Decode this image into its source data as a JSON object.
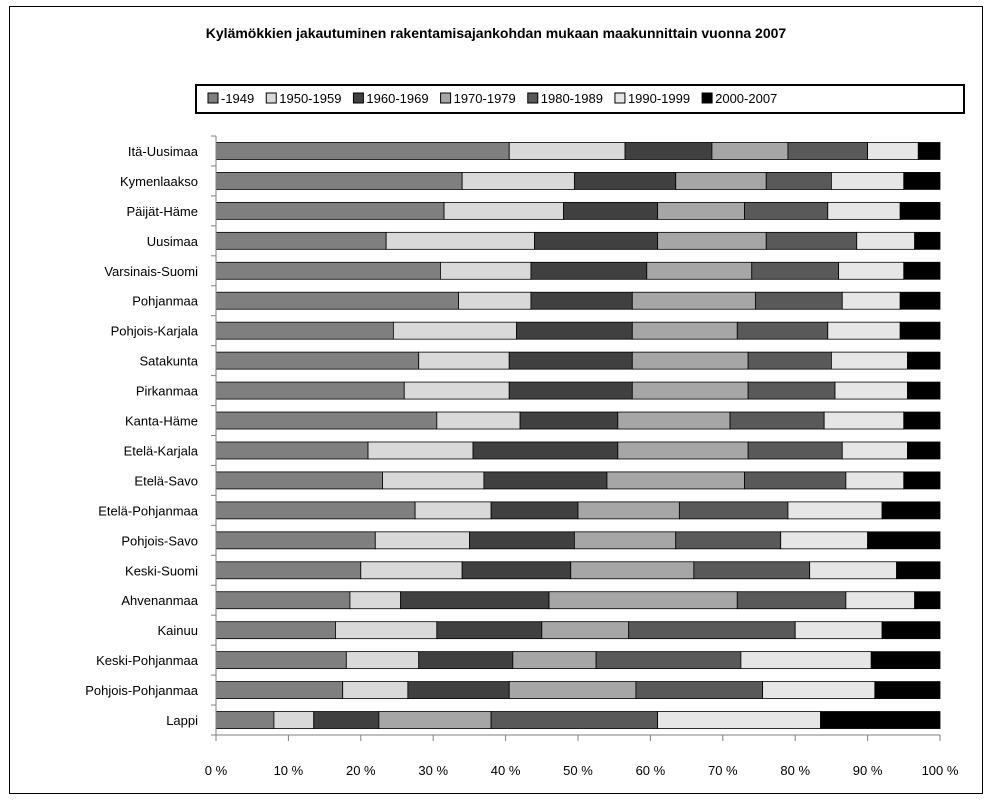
{
  "chart_data": {
    "type": "bar",
    "orientation": "horizontal",
    "stacked": "percent",
    "title": "Kylämökkien jakautuminen rakentamisajankohdan  mukaan maakunnittain vuonna 2007",
    "categories": [
      "Itä-Uusimaa",
      "Kymenlaakso",
      "Päijät-Häme",
      "Uusimaa",
      "Varsinais-Suomi",
      "Pohjanmaa",
      "Pohjois-Karjala",
      "Satakunta",
      "Pirkanmaa",
      "Kanta-Häme",
      "Etelä-Karjala",
      "Etelä-Savo",
      "Etelä-Pohjanmaa",
      "Pohjois-Savo",
      "Keski-Suomi",
      "Ahvenanmaa",
      "Kainuu",
      "Keski-Pohjanmaa",
      "Pohjois-Pohjanmaa",
      "Lappi"
    ],
    "series": [
      {
        "name": "-1949",
        "color": "#7f7f7f",
        "values": [
          40.5,
          34.0,
          31.5,
          23.5,
          31.0,
          33.5,
          24.5,
          28.0,
          26.0,
          30.5,
          21.0,
          23.0,
          27.5,
          22.0,
          20.0,
          18.5,
          16.5,
          18.0,
          17.5,
          8.0
        ]
      },
      {
        "name": "1950-1959",
        "color": "#d9d9d9",
        "values": [
          16.0,
          15.5,
          16.5,
          20.5,
          12.5,
          10.0,
          17.0,
          12.5,
          14.5,
          11.5,
          14.5,
          14.0,
          10.5,
          13.0,
          14.0,
          7.0,
          14.0,
          10.0,
          9.0,
          5.5
        ]
      },
      {
        "name": "1960-1969",
        "color": "#404040",
        "values": [
          12.0,
          14.0,
          13.0,
          17.0,
          16.0,
          14.0,
          16.0,
          17.0,
          17.0,
          13.5,
          20.0,
          17.0,
          12.0,
          14.5,
          15.0,
          20.5,
          14.5,
          13.0,
          14.0,
          9.0
        ]
      },
      {
        "name": "1970-1979",
        "color": "#a6a6a6",
        "values": [
          10.5,
          12.5,
          12.0,
          15.0,
          14.5,
          17.0,
          14.5,
          16.0,
          16.0,
          15.5,
          18.0,
          19.0,
          14.0,
          14.0,
          17.0,
          26.0,
          12.0,
          11.5,
          17.5,
          15.5
        ]
      },
      {
        "name": "1980-1989",
        "color": "#595959",
        "values": [
          11.0,
          9.0,
          11.5,
          12.5,
          12.0,
          12.0,
          12.5,
          11.5,
          12.0,
          13.0,
          13.0,
          14.0,
          15.0,
          14.5,
          16.0,
          15.0,
          23.0,
          20.0,
          17.5,
          23.0
        ]
      },
      {
        "name": "1990-1999",
        "color": "#e6e6e6",
        "values": [
          7.0,
          10.0,
          10.0,
          8.0,
          9.0,
          8.0,
          10.0,
          10.5,
          10.0,
          11.0,
          9.0,
          8.0,
          13.0,
          12.0,
          12.0,
          9.5,
          12.0,
          18.0,
          15.5,
          22.5
        ]
      },
      {
        "name": "2000-2007",
        "color": "#000000",
        "values": [
          3.0,
          5.0,
          5.5,
          3.5,
          5.0,
          5.5,
          5.5,
          4.5,
          4.5,
          5.0,
          4.5,
          5.0,
          8.0,
          10.0,
          6.0,
          3.5,
          8.0,
          9.5,
          9.0,
          16.5
        ]
      }
    ],
    "x_ticks": [
      "0 %",
      "10 %",
      "20 %",
      "30 %",
      "40 %",
      "50 %",
      "60 %",
      "70 %",
      "80 %",
      "90 %",
      "100 %"
    ],
    "xlim": [
      0,
      100
    ],
    "grid": false,
    "legend_position": "top"
  }
}
